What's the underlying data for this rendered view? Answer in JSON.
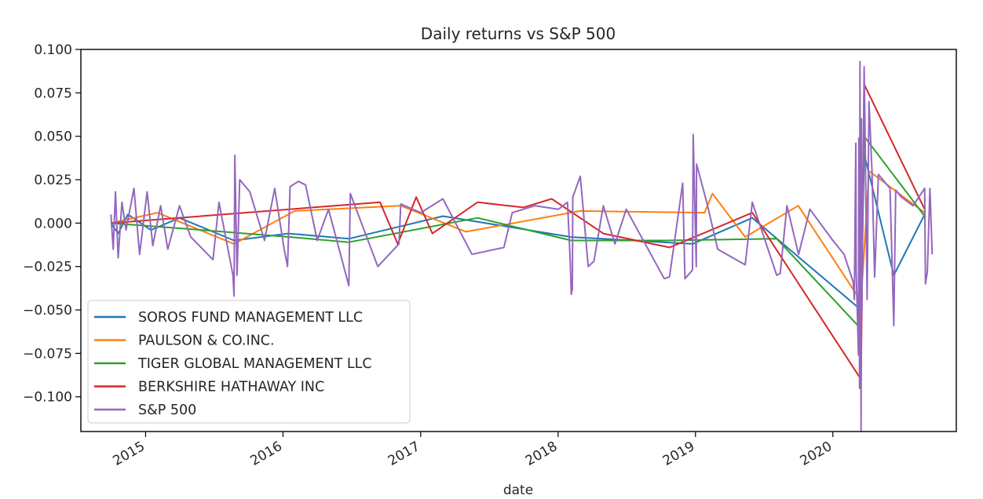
{
  "chart_data": {
    "type": "line",
    "title": "Daily returns vs S&P 500",
    "xlabel": "date",
    "ylabel": "",
    "x_axis": {
      "kind": "date",
      "range": [
        "2014-07-13",
        "2020-11-24"
      ],
      "ticks": [
        {
          "label": "2015",
          "date": "2015-01-01"
        },
        {
          "label": "2016",
          "date": "2016-01-01"
        },
        {
          "label": "2017",
          "date": "2017-01-01"
        },
        {
          "label": "2018",
          "date": "2018-01-01"
        },
        {
          "label": "2019",
          "date": "2019-01-01"
        },
        {
          "label": "2020",
          "date": "2020-01-01"
        }
      ]
    },
    "y_axis": {
      "range": [
        -0.12,
        0.1
      ],
      "ticks": [
        "-0.100",
        "-0.075",
        "-0.050",
        "-0.025",
        "0.000",
        "0.025",
        "0.050",
        "0.075",
        "0.100"
      ]
    },
    "grid": false,
    "legend": {
      "placement": "lower-left"
    },
    "series": [
      {
        "name": "SOROS FUND MANAGEMENT LLC",
        "color": "#1f77b4",
        "points": [
          [
            "2014-10-01",
            0.0
          ],
          [
            "2014-10-20",
            -0.006
          ],
          [
            "2014-11-15",
            0.005
          ],
          [
            "2015-01-15",
            -0.004
          ],
          [
            "2015-04-01",
            0.003
          ],
          [
            "2015-08-24",
            -0.01
          ],
          [
            "2016-01-15",
            -0.006
          ],
          [
            "2016-06-24",
            -0.009
          ],
          [
            "2017-03-01",
            0.004
          ],
          [
            "2018-02-05",
            -0.008
          ],
          [
            "2018-12-24",
            -0.012
          ],
          [
            "2019-06-01",
            0.003
          ],
          [
            "2020-03-16",
            -0.05
          ],
          [
            "2020-03-24",
            0.04
          ],
          [
            "2020-06-11",
            -0.03
          ],
          [
            "2020-09-01",
            0.005
          ]
        ]
      },
      {
        "name": "PAULSON & CO.INC.",
        "color": "#ff7f0e",
        "points": [
          [
            "2014-10-01",
            0.0
          ],
          [
            "2015-02-01",
            0.006
          ],
          [
            "2015-08-24",
            -0.012
          ],
          [
            "2016-02-01",
            0.007
          ],
          [
            "2016-11-09",
            0.01
          ],
          [
            "2017-05-01",
            -0.005
          ],
          [
            "2018-03-01",
            0.007
          ],
          [
            "2019-01-25",
            0.006
          ],
          [
            "2019-02-15",
            0.017
          ],
          [
            "2019-05-13",
            -0.008
          ],
          [
            "2019-10-01",
            0.01
          ],
          [
            "2020-03-16",
            -0.045
          ],
          [
            "2020-04-06",
            0.03
          ],
          [
            "2020-09-01",
            0.006
          ]
        ]
      },
      {
        "name": "TIGER GLOBAL MANAGEMENT LLC",
        "color": "#2ca02c",
        "points": [
          [
            "2014-10-01",
            0.0
          ],
          [
            "2015-06-01",
            -0.004
          ],
          [
            "2016-01-20",
            -0.008
          ],
          [
            "2016-06-24",
            -0.011
          ],
          [
            "2017-06-01",
            0.003
          ],
          [
            "2018-02-05",
            -0.01
          ],
          [
            "2018-10-10",
            -0.01
          ],
          [
            "2019-08-05",
            -0.009
          ],
          [
            "2020-03-12",
            -0.06
          ],
          [
            "2020-03-24",
            0.05
          ],
          [
            "2020-09-01",
            0.004
          ]
        ]
      },
      {
        "name": "BERKSHIRE HATHAWAY INC",
        "color": "#d62728",
        "points": [
          [
            "2014-10-01",
            0.0
          ],
          [
            "2016-09-15",
            0.012
          ],
          [
            "2016-11-01",
            -0.012
          ],
          [
            "2016-12-20",
            0.015
          ],
          [
            "2017-02-01",
            -0.006
          ],
          [
            "2017-06-01",
            0.012
          ],
          [
            "2017-10-01",
            0.009
          ],
          [
            "2017-12-15",
            0.014
          ],
          [
            "2018-05-01",
            -0.006
          ],
          [
            "2018-10-24",
            -0.014
          ],
          [
            "2019-06-01",
            0.006
          ],
          [
            "2020-03-16",
            -0.09
          ],
          [
            "2020-03-24",
            0.08
          ],
          [
            "2020-09-01",
            0.008
          ]
        ]
      },
      {
        "name": "S&P 500",
        "color": "#9467bd",
        "points": [
          [
            "2014-10-01",
            0.005
          ],
          [
            "2014-10-07",
            -0.015
          ],
          [
            "2014-10-13",
            0.018
          ],
          [
            "2014-10-20",
            -0.02
          ],
          [
            "2014-10-30",
            0.012
          ],
          [
            "2014-11-10",
            -0.004
          ],
          [
            "2014-12-01",
            0.02
          ],
          [
            "2014-12-16",
            -0.018
          ],
          [
            "2015-01-05",
            0.018
          ],
          [
            "2015-01-20",
            -0.013
          ],
          [
            "2015-02-10",
            0.01
          ],
          [
            "2015-03-01",
            -0.015
          ],
          [
            "2015-04-01",
            0.01
          ],
          [
            "2015-05-01",
            -0.008
          ],
          [
            "2015-06-29",
            -0.021
          ],
          [
            "2015-07-15",
            0.012
          ],
          [
            "2015-08-21",
            -0.03
          ],
          [
            "2015-08-24",
            -0.042
          ],
          [
            "2015-08-26",
            0.039
          ],
          [
            "2015-09-01",
            -0.03
          ],
          [
            "2015-09-08",
            0.025
          ],
          [
            "2015-10-05",
            0.018
          ],
          [
            "2015-11-13",
            -0.01
          ],
          [
            "2015-12-10",
            0.02
          ],
          [
            "2016-01-04",
            -0.015
          ],
          [
            "2016-01-13",
            -0.025
          ],
          [
            "2016-01-20",
            0.021
          ],
          [
            "2016-02-11",
            0.024
          ],
          [
            "2016-03-01",
            0.022
          ],
          [
            "2016-04-01",
            -0.01
          ],
          [
            "2016-05-01",
            0.008
          ],
          [
            "2016-06-24",
            -0.036
          ],
          [
            "2016-06-28",
            0.017
          ],
          [
            "2016-09-09",
            -0.025
          ],
          [
            "2016-11-04",
            -0.012
          ],
          [
            "2016-11-09",
            0.011
          ],
          [
            "2017-01-01",
            0.006
          ],
          [
            "2017-03-01",
            0.014
          ],
          [
            "2017-05-17",
            -0.018
          ],
          [
            "2017-08-10",
            -0.014
          ],
          [
            "2017-09-01",
            0.006
          ],
          [
            "2017-11-01",
            0.01
          ],
          [
            "2018-01-02",
            0.008
          ],
          [
            "2018-01-26",
            0.012
          ],
          [
            "2018-02-02",
            -0.021
          ],
          [
            "2018-02-05",
            -0.041
          ],
          [
            "2018-02-08",
            -0.038
          ],
          [
            "2018-02-09",
            0.015
          ],
          [
            "2018-03-01",
            0.027
          ],
          [
            "2018-03-22",
            -0.025
          ],
          [
            "2018-04-06",
            -0.022
          ],
          [
            "2018-05-01",
            0.01
          ],
          [
            "2018-06-01",
            -0.012
          ],
          [
            "2018-07-01",
            0.008
          ],
          [
            "2018-10-10",
            -0.032
          ],
          [
            "2018-10-24",
            -0.031
          ],
          [
            "2018-11-28",
            0.023
          ],
          [
            "2018-12-04",
            -0.032
          ],
          [
            "2018-12-24",
            -0.027
          ],
          [
            "2018-12-26",
            0.051
          ],
          [
            "2019-01-03",
            -0.025
          ],
          [
            "2019-01-04",
            0.034
          ],
          [
            "2019-02-01",
            0.011
          ],
          [
            "2019-03-01",
            -0.015
          ],
          [
            "2019-05-13",
            -0.024
          ],
          [
            "2019-06-01",
            0.012
          ],
          [
            "2019-08-05",
            -0.03
          ],
          [
            "2019-08-14",
            -0.029
          ],
          [
            "2019-09-01",
            0.01
          ],
          [
            "2019-10-02",
            -0.018
          ],
          [
            "2019-11-01",
            0.008
          ],
          [
            "2020-01-01",
            -0.01
          ],
          [
            "2020-01-31",
            -0.018
          ],
          [
            "2020-02-24",
            -0.034
          ],
          [
            "2020-02-27",
            -0.044
          ],
          [
            "2020-03-02",
            0.046
          ],
          [
            "2020-03-03",
            -0.028
          ],
          [
            "2020-03-09",
            -0.076
          ],
          [
            "2020-03-10",
            0.049
          ],
          [
            "2020-03-12",
            -0.095
          ],
          [
            "2020-03-13",
            0.093
          ],
          [
            "2020-03-16",
            -0.12
          ],
          [
            "2020-03-17",
            0.06
          ],
          [
            "2020-03-18",
            -0.052
          ],
          [
            "2020-03-24",
            0.09
          ],
          [
            "2020-03-26",
            0.062
          ],
          [
            "2020-04-01",
            -0.044
          ],
          [
            "2020-04-06",
            0.07
          ],
          [
            "2020-04-14",
            0.03
          ],
          [
            "2020-04-21",
            -0.031
          ],
          [
            "2020-05-01",
            0.028
          ],
          [
            "2020-06-01",
            0.02
          ],
          [
            "2020-06-11",
            -0.059
          ],
          [
            "2020-06-16",
            0.019
          ],
          [
            "2020-07-01",
            0.015
          ],
          [
            "2020-08-01",
            0.01
          ],
          [
            "2020-09-01",
            0.02
          ],
          [
            "2020-09-03",
            -0.035
          ],
          [
            "2020-09-08",
            -0.028
          ],
          [
            "2020-09-15",
            0.02
          ],
          [
            "2020-09-21",
            -0.018
          ]
        ]
      }
    ]
  }
}
